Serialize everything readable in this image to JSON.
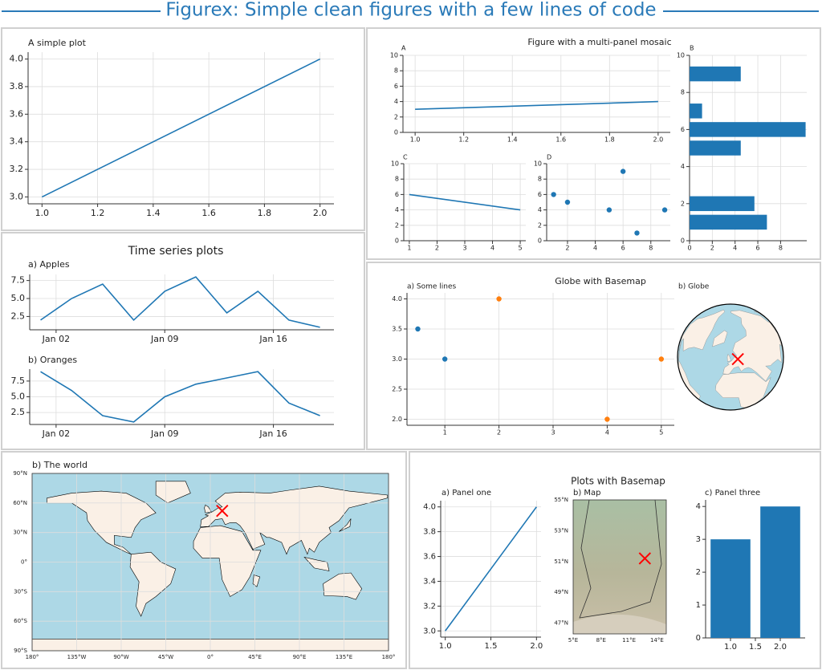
{
  "page": {
    "title": "Figurex: Simple clean figures with a few lines of code"
  },
  "figure_titles": [
    "Time series plots",
    "Figure with a multi-panel mosaic",
    "Globe with Basemap",
    "Plots with Basemap"
  ],
  "chart_data": [
    {
      "type": "line",
      "title": "A simple plot",
      "x": [
        1,
        2
      ],
      "series": [
        {
          "color": "#1f77b4",
          "values": [
            3,
            4
          ]
        }
      ],
      "xlim": [
        0.95,
        2.05
      ],
      "ylim": [
        2.95,
        4.05
      ],
      "grid": true,
      "xticks": [
        {
          "value": 1,
          "label": "1.0"
        },
        1.2,
        1.4,
        1.6,
        1.8,
        {
          "value": 2,
          "label": "2.0"
        }
      ],
      "yticks": [
        {
          "value": 3,
          "label": "3.0"
        },
        3.2,
        3.4,
        3.6,
        3.8,
        {
          "value": 4,
          "label": "4.0"
        }
      ]
    },
    {
      "type": "line",
      "title": "a) Apples",
      "x": [
        1,
        3,
        5,
        7,
        9,
        11,
        13,
        15,
        17,
        19
      ],
      "series": [
        {
          "color": "#1f77b4",
          "values": [
            2,
            5,
            7,
            2,
            6,
            8,
            3,
            6,
            2,
            1
          ]
        }
      ],
      "xlim": [
        0.3,
        19.9
      ],
      "ylim": [
        0.65,
        8.35
      ],
      "grid": true,
      "xticks": [
        {
          "value": 2,
          "label": "Jan 02"
        },
        {
          "value": 9,
          "label": "Jan 09"
        },
        {
          "value": 16,
          "label": "Jan 16"
        }
      ],
      "yticks": [
        2.5,
        {
          "value": 5,
          "label": "5.0"
        },
        7.5
      ]
    },
    {
      "type": "line",
      "title": "b) Oranges",
      "x": [
        1,
        3,
        5,
        7,
        9,
        11,
        13,
        15,
        17,
        19
      ],
      "series": [
        {
          "color": "#1f77b4",
          "values": [
            9,
            6,
            2,
            1,
            5,
            7,
            8,
            9,
            4,
            2
          ]
        }
      ],
      "xlim": [
        0.3,
        19.9
      ],
      "ylim": [
        0.6,
        9.4
      ],
      "grid": true,
      "xticks": [
        {
          "value": 2,
          "label": "Jan 02"
        },
        {
          "value": 9,
          "label": "Jan 09"
        },
        {
          "value": 16,
          "label": "Jan 16"
        }
      ],
      "yticks": [
        2.5,
        {
          "value": 5,
          "label": "5.0"
        },
        7.5
      ]
    },
    {
      "type": "line",
      "title": "A",
      "x": [
        1,
        2
      ],
      "series": [
        {
          "color": "#1f77b4",
          "values": [
            3,
            4
          ]
        }
      ],
      "xlim": [
        0.95,
        2.05
      ],
      "ylim": [
        0,
        10
      ],
      "grid": true,
      "xticks": [
        {
          "value": 1,
          "label": "1.0"
        },
        1.2,
        1.4,
        1.6,
        1.8,
        {
          "value": 2,
          "label": "2.0"
        }
      ],
      "yticks": [
        0,
        2,
        4,
        6,
        8,
        10
      ]
    },
    {
      "type": "line",
      "title": "C",
      "x": [
        1,
        5
      ],
      "series": [
        {
          "color": "#1f77b4",
          "values": [
            6,
            4
          ]
        }
      ],
      "xlim": [
        0.8,
        5.2
      ],
      "ylim": [
        0,
        10
      ],
      "grid": true,
      "xticks": [
        1,
        2,
        3,
        4,
        5
      ],
      "yticks": [
        0,
        2,
        4,
        6,
        8,
        10
      ]
    },
    {
      "type": "scatter",
      "title": "D",
      "series": [
        {
          "color": "#1f77b4",
          "x": [
            1,
            2,
            5,
            6,
            7,
            9
          ],
          "values": [
            6,
            5,
            4,
            9,
            1,
            4
          ]
        }
      ],
      "xlim": [
        0.5,
        9.4
      ],
      "ylim": [
        0,
        10
      ],
      "grid": true,
      "xticks": [
        2,
        4,
        6,
        8
      ],
      "yticks": [
        0,
        2,
        4,
        6,
        8,
        10
      ]
    },
    {
      "type": "barh",
      "title": "B",
      "y": [
        1,
        2,
        5,
        6,
        7,
        9
      ],
      "values": [
        6.8,
        5.7,
        4.5,
        10.2,
        1.1,
        4.5
      ],
      "color": "#1f77b4",
      "xlim": [
        0,
        10.3
      ],
      "ylim": [
        0,
        10
      ],
      "grid": true,
      "xticks": [
        0,
        2,
        4,
        6,
        8
      ],
      "yticks": [
        0,
        2,
        4,
        6,
        8,
        10
      ]
    },
    {
      "type": "scatter",
      "title": "a) Some lines",
      "series": [
        {
          "color": "#1f77b4",
          "x": [
            0.5,
            1
          ],
          "values": [
            3.5,
            3
          ]
        },
        {
          "color": "#ff7f0e",
          "x": [
            2,
            5,
            4
          ],
          "values": [
            4,
            3,
            2
          ]
        }
      ],
      "xlim": [
        0.3,
        5.24
      ],
      "ylim": [
        1.9,
        4.1
      ],
      "grid": true,
      "xticks": [
        1,
        2,
        3,
        4,
        5
      ],
      "yticks": [
        {
          "value": 2,
          "label": "2.0"
        },
        2.5,
        {
          "value": 3,
          "label": "3.0"
        },
        3.5,
        {
          "value": 4,
          "label": "4.0"
        }
      ]
    },
    {
      "type": "globe",
      "title": "b) Globe",
      "marker": {
        "lon": 13,
        "lat": 52,
        "color": "#ff0000"
      }
    },
    {
      "type": "map",
      "title": "b) The world",
      "xlim": [
        -180,
        180
      ],
      "ylim": [
        -90,
        90
      ],
      "grid": true,
      "marker": {
        "lon": 12,
        "lat": 52,
        "color": "#ff0000"
      },
      "xticks": [
        {
          "value": -180,
          "label": "180°"
        },
        {
          "value": -135,
          "label": "135°W"
        },
        {
          "value": -90,
          "label": "90°W"
        },
        {
          "value": -45,
          "label": "45°W"
        },
        {
          "value": 0,
          "label": "0°"
        },
        {
          "value": 45,
          "label": "45°E"
        },
        {
          "value": 90,
          "label": "90°E"
        },
        {
          "value": 135,
          "label": "135°E"
        },
        {
          "value": 180,
          "label": "180°"
        }
      ],
      "yticks": [
        {
          "value": -90,
          "label": "90°S"
        },
        {
          "value": -60,
          "label": "60°S"
        },
        {
          "value": -30,
          "label": "30°S"
        },
        {
          "value": 0,
          "label": "0°"
        },
        {
          "value": 30,
          "label": "30°N"
        },
        {
          "value": 60,
          "label": "60°N"
        },
        {
          "value": 90,
          "label": "90°N"
        }
      ]
    },
    {
      "type": "line",
      "title": "a) Panel one",
      "x": [
        1,
        2
      ],
      "series": [
        {
          "color": "#1f77b4",
          "values": [
            3,
            4
          ]
        }
      ],
      "xlim": [
        0.95,
        2.05
      ],
      "ylim": [
        2.95,
        4.05
      ],
      "grid": true,
      "xticks": [
        {
          "value": 1,
          "label": "1.0"
        },
        1.5,
        {
          "value": 2,
          "label": "2.0"
        }
      ],
      "yticks": [
        {
          "value": 3,
          "label": "3.0"
        },
        3.2,
        3.4,
        3.6,
        3.8,
        {
          "value": 4,
          "label": "4.0"
        }
      ]
    },
    {
      "type": "terrain",
      "title": "b) Map",
      "xlim": [
        5,
        15
      ],
      "ylim": [
        46.3,
        55
      ],
      "grid": false,
      "marker": {
        "lon": 12.7,
        "lat": 51.2,
        "color": "#ff0000"
      },
      "xticks": [
        {
          "value": 5,
          "label": "5°E"
        },
        {
          "value": 8,
          "label": "8°E"
        },
        {
          "value": 11,
          "label": "11°E"
        },
        {
          "value": 14,
          "label": "14°E"
        }
      ],
      "yticks": [
        {
          "value": 47,
          "label": "47°N"
        },
        {
          "value": 49,
          "label": "49°N"
        },
        {
          "value": 51,
          "label": "51°N"
        },
        {
          "value": 53,
          "label": "53°N"
        },
        {
          "value": 55,
          "label": "55°N"
        }
      ]
    },
    {
      "type": "bar",
      "title": "c) Panel three",
      "x": [
        1,
        2
      ],
      "values": [
        3,
        4
      ],
      "color": "#1f77b4",
      "xlim": [
        0.5,
        2.5
      ],
      "ylim": [
        0,
        4.2
      ],
      "grid": false,
      "xticks": [
        {
          "value": 1,
          "label": "1.0"
        },
        1.5,
        {
          "value": 2,
          "label": "2.0"
        }
      ],
      "yticks": [
        0,
        1,
        2,
        3,
        4
      ]
    }
  ]
}
